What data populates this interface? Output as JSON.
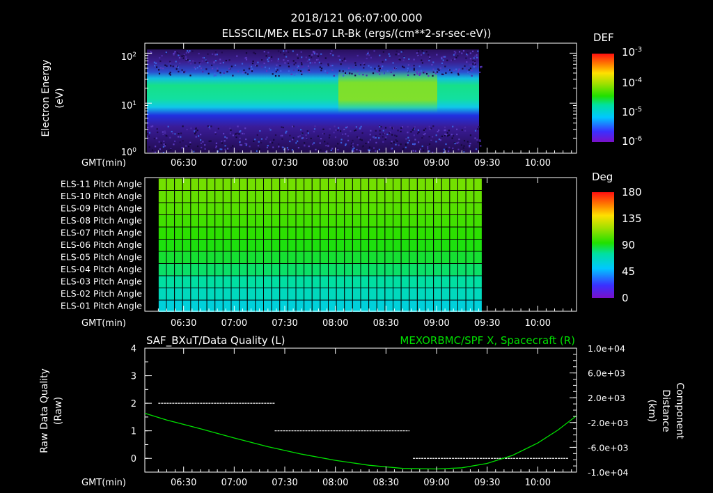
{
  "title": "2018/121 06:07:00.000",
  "subtitle": "ELSSCIL/MEx ELS-07 LR-Bk  (ergs/(cm**2-sr-sec-eV))",
  "time_axis": {
    "label": "GMT(min)",
    "ticks": [
      "06:30",
      "07:00",
      "07:30",
      "08:00",
      "08:30",
      "09:00",
      "09:30",
      "10:00"
    ],
    "tick_minutes": [
      390,
      420,
      450,
      480,
      510,
      540,
      570,
      600
    ],
    "range_minutes": [
      367,
      623
    ]
  },
  "colors": {
    "accent_green": "#00e000",
    "frame": "#ffffff",
    "background": "#000000"
  },
  "chart_data": [
    {
      "type": "heatmap",
      "name": "energy-spectrogram",
      "ylabel": "Electron Energy\n(eV)",
      "ylabel_lines": [
        "Electron Energy",
        "(eV)"
      ],
      "y_ticks": [
        {
          "base": "10",
          "exp": "0"
        },
        {
          "base": "10",
          "exp": "1"
        },
        {
          "base": "10",
          "exp": "2"
        }
      ],
      "ylim_log10": [
        0,
        2.2
      ],
      "data_end_minute": 567,
      "feature": "DEF peak near 15-20 eV throughout; enhanced, broadened band 08:00-09:05",
      "colorbar": {
        "label": "DEF",
        "tick_labels": [
          {
            "base": "10",
            "exp": "-3"
          },
          {
            "base": "10",
            "exp": "-4"
          },
          {
            "base": "10",
            "exp": "-5"
          },
          {
            "base": "10",
            "exp": "-6"
          }
        ]
      }
    },
    {
      "type": "heatmap",
      "name": "pitch-angle",
      "rows": [
        "ELS-11 Pitch Angle",
        "ELS-10 Pitch Angle",
        "ELS-09 Pitch Angle",
        "ELS-08 Pitch Angle",
        "ELS-07 Pitch Angle",
        "ELS-06 Pitch Angle",
        "ELS-05 Pitch Angle",
        "ELS-04 Pitch Angle",
        "ELS-03 Pitch Angle",
        "ELS-02 Pitch Angle",
        "ELS-01 Pitch Angle"
      ],
      "values_deg": [
        110,
        107,
        104,
        100,
        96,
        92,
        88,
        82,
        75,
        68,
        60
      ],
      "data_start_minute": 375,
      "data_end_minute": 567,
      "colorbar": {
        "label": "Deg",
        "tick_labels": [
          "180",
          "135",
          "90",
          "45",
          "0"
        ],
        "range": [
          0,
          180
        ]
      }
    },
    {
      "type": "line",
      "name": "quality-and-distance",
      "title_left": "SAF_BXuT/Data Quality (L)",
      "title_right": "MEXORBMC/SPF X, Spacecraft (R)",
      "ylabel_left_lines": [
        "Raw Data Quality",
        "(Raw)"
      ],
      "ylabel_right_lines": [
        "Component",
        "Distance",
        "(km)"
      ],
      "y_left_ticks": [
        "0",
        "1",
        "2",
        "3",
        "4"
      ],
      "ylim_left": [
        -0.5,
        4
      ],
      "y_right_ticks": [
        "-1.0e+04",
        "-6.0e+03",
        "-2.0e+03",
        "2.0e+03",
        "6.0e+03",
        "1.0e+04"
      ],
      "ylim_right": [
        -10000,
        10000
      ],
      "series": [
        {
          "name": "Data Quality",
          "axis": "left",
          "color": "#ffffff",
          "segments": [
            {
              "start": 375,
              "end": 444,
              "value": 2
            },
            {
              "start": 444,
              "end": 524,
              "value": 1
            },
            {
              "start": 526,
              "end": 618,
              "value": 0
            }
          ]
        },
        {
          "name": "SPF X",
          "axis": "right",
          "color": "#00e000",
          "x": [
            367,
            380,
            400,
            420,
            440,
            460,
            480,
            500,
            520,
            540,
            555,
            570,
            585,
            600,
            612,
            623
          ],
          "y": [
            -500,
            -1600,
            -3000,
            -4500,
            -5900,
            -7100,
            -8100,
            -8900,
            -9400,
            -9500,
            -9300,
            -8600,
            -7300,
            -5300,
            -3200,
            -900
          ]
        }
      ]
    }
  ]
}
